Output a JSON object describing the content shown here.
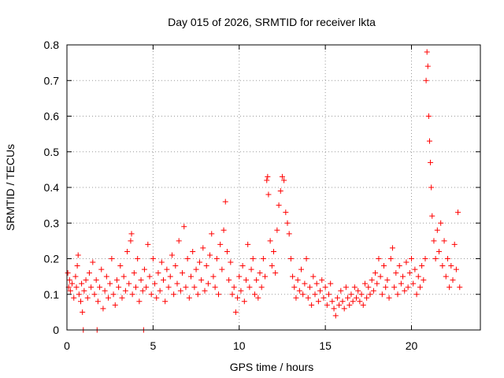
{
  "chart_data": {
    "type": "scatter",
    "title": "Day 015 of 2026, SRMTID for receiver lkta",
    "xlabel": "GPS time / hours",
    "ylabel": "SRMTID / TECUs",
    "xlim": [
      0,
      24
    ],
    "ylim": [
      0,
      0.8
    ],
    "grid": true,
    "marker": "+",
    "color": "#ff0000",
    "xticks": [
      0,
      5,
      10,
      15,
      20
    ],
    "xtick_labels": [
      "0",
      "5",
      "10",
      "15",
      "20"
    ],
    "yticks": [
      0,
      0.1,
      0.2,
      0.3,
      0.4,
      0.5,
      0.6,
      0.7,
      0.8
    ],
    "ytick_labels": [
      "0",
      "0.1",
      "0.2",
      "0.3",
      "0.4",
      "0.5",
      "0.6",
      "0.7",
      "0.8"
    ],
    "series": [
      {
        "name": "SRMTID",
        "points": [
          [
            0.05,
            0.16
          ],
          [
            0.1,
            0.12
          ],
          [
            0.15,
            0.14
          ],
          [
            0.2,
            0.11
          ],
          [
            0.3,
            0.13
          ],
          [
            0.4,
            0.09
          ],
          [
            0.5,
            0.15
          ],
          [
            0.55,
            0.12
          ],
          [
            0.6,
            0.18
          ],
          [
            0.65,
            0.21
          ],
          [
            0.7,
            0.1
          ],
          [
            0.8,
            0.08
          ],
          [
            0.85,
            0.13
          ],
          [
            0.9,
            0.05
          ],
          [
            0.95,
            0.0
          ],
          [
            1.0,
            0.11
          ],
          [
            1.1,
            0.14
          ],
          [
            1.2,
            0.09
          ],
          [
            1.3,
            0.16
          ],
          [
            1.4,
            0.12
          ],
          [
            1.5,
            0.19
          ],
          [
            1.6,
            0.1
          ],
          [
            1.7,
            0.14
          ],
          [
            1.75,
            0.0
          ],
          [
            1.8,
            0.08
          ],
          [
            1.9,
            0.12
          ],
          [
            2.0,
            0.17
          ],
          [
            2.1,
            0.06
          ],
          [
            2.2,
            0.11
          ],
          [
            2.3,
            0.15
          ],
          [
            2.4,
            0.09
          ],
          [
            2.5,
            0.13
          ],
          [
            2.6,
            0.2
          ],
          [
            2.7,
            0.1
          ],
          [
            2.8,
            0.07
          ],
          [
            2.9,
            0.14
          ],
          [
            3.0,
            0.12
          ],
          [
            3.1,
            0.18
          ],
          [
            3.2,
            0.09
          ],
          [
            3.3,
            0.15
          ],
          [
            3.4,
            0.11
          ],
          [
            3.5,
            0.22
          ],
          [
            3.6,
            0.13
          ],
          [
            3.7,
            0.25
          ],
          [
            3.75,
            0.27
          ],
          [
            3.8,
            0.1
          ],
          [
            3.9,
            0.16
          ],
          [
            4.0,
            0.12
          ],
          [
            4.1,
            0.2
          ],
          [
            4.2,
            0.08
          ],
          [
            4.3,
            0.14
          ],
          [
            4.4,
            0.11
          ],
          [
            4.45,
            0.0
          ],
          [
            4.5,
            0.17
          ],
          [
            4.6,
            0.12
          ],
          [
            4.7,
            0.24
          ],
          [
            4.8,
            0.15
          ],
          [
            4.9,
            0.1
          ],
          [
            5.0,
            0.2
          ],
          [
            5.1,
            0.13
          ],
          [
            5.2,
            0.09
          ],
          [
            5.3,
            0.16
          ],
          [
            5.4,
            0.11
          ],
          [
            5.5,
            0.19
          ],
          [
            5.6,
            0.14
          ],
          [
            5.7,
            0.08
          ],
          [
            5.8,
            0.17
          ],
          [
            5.9,
            0.12
          ],
          [
            6.0,
            0.15
          ],
          [
            6.1,
            0.21
          ],
          [
            6.2,
            0.1
          ],
          [
            6.3,
            0.18
          ],
          [
            6.4,
            0.13
          ],
          [
            6.5,
            0.25
          ],
          [
            6.6,
            0.11
          ],
          [
            6.7,
            0.16
          ],
          [
            6.8,
            0.29
          ],
          [
            6.9,
            0.12
          ],
          [
            7.0,
            0.2
          ],
          [
            7.1,
            0.09
          ],
          [
            7.2,
            0.15
          ],
          [
            7.3,
            0.22
          ],
          [
            7.4,
            0.12
          ],
          [
            7.5,
            0.17
          ],
          [
            7.6,
            0.1
          ],
          [
            7.7,
            0.19
          ],
          [
            7.8,
            0.14
          ],
          [
            7.9,
            0.23
          ],
          [
            8.0,
            0.11
          ],
          [
            8.1,
            0.18
          ],
          [
            8.2,
            0.13
          ],
          [
            8.3,
            0.21
          ],
          [
            8.4,
            0.27
          ],
          [
            8.5,
            0.15
          ],
          [
            8.6,
            0.12
          ],
          [
            8.7,
            0.2
          ],
          [
            8.8,
            0.1
          ],
          [
            8.9,
            0.24
          ],
          [
            9.0,
            0.17
          ],
          [
            9.1,
            0.28
          ],
          [
            9.2,
            0.36
          ],
          [
            9.3,
            0.22
          ],
          [
            9.4,
            0.14
          ],
          [
            9.5,
            0.19
          ],
          [
            9.6,
            0.1
          ],
          [
            9.7,
            0.12
          ],
          [
            9.8,
            0.05
          ],
          [
            9.9,
            0.09
          ],
          [
            10.0,
            0.15
          ],
          [
            10.1,
            0.11
          ],
          [
            10.2,
            0.18
          ],
          [
            10.3,
            0.08
          ],
          [
            10.4,
            0.14
          ],
          [
            10.5,
            0.24
          ],
          [
            10.6,
            0.12
          ],
          [
            10.7,
            0.17
          ],
          [
            10.8,
            0.2
          ],
          [
            10.9,
            0.1
          ],
          [
            11.0,
            0.14
          ],
          [
            11.1,
            0.09
          ],
          [
            11.2,
            0.16
          ],
          [
            11.3,
            0.12
          ],
          [
            11.4,
            0.2
          ],
          [
            11.5,
            0.15
          ],
          [
            11.6,
            0.42
          ],
          [
            11.65,
            0.43
          ],
          [
            11.7,
            0.38
          ],
          [
            11.8,
            0.25
          ],
          [
            11.9,
            0.18
          ],
          [
            12.0,
            0.22
          ],
          [
            12.1,
            0.16
          ],
          [
            12.2,
            0.28
          ],
          [
            12.3,
            0.35
          ],
          [
            12.4,
            0.39
          ],
          [
            12.5,
            0.43
          ],
          [
            12.6,
            0.42
          ],
          [
            12.7,
            0.33
          ],
          [
            12.8,
            0.3
          ],
          [
            12.9,
            0.27
          ],
          [
            13.0,
            0.2
          ],
          [
            13.1,
            0.15
          ],
          [
            13.2,
            0.12
          ],
          [
            13.3,
            0.09
          ],
          [
            13.4,
            0.14
          ],
          [
            13.5,
            0.11
          ],
          [
            13.6,
            0.17
          ],
          [
            13.7,
            0.1
          ],
          [
            13.8,
            0.13
          ],
          [
            13.9,
            0.2
          ],
          [
            14.0,
            0.09
          ],
          [
            14.1,
            0.12
          ],
          [
            14.2,
            0.07
          ],
          [
            14.3,
            0.15
          ],
          [
            14.4,
            0.1
          ],
          [
            14.5,
            0.13
          ],
          [
            14.6,
            0.08
          ],
          [
            14.7,
            0.11
          ],
          [
            14.8,
            0.14
          ],
          [
            14.9,
            0.09
          ],
          [
            15.0,
            0.12
          ],
          [
            15.1,
            0.07
          ],
          [
            15.2,
            0.1
          ],
          [
            15.3,
            0.13
          ],
          [
            15.4,
            0.08
          ],
          [
            15.5,
            0.06
          ],
          [
            15.6,
            0.04
          ],
          [
            15.7,
            0.09
          ],
          [
            15.8,
            0.07
          ],
          [
            15.9,
            0.11
          ],
          [
            16.0,
            0.08
          ],
          [
            16.1,
            0.06
          ],
          [
            16.2,
            0.12
          ],
          [
            16.3,
            0.09
          ],
          [
            16.4,
            0.07
          ],
          [
            16.5,
            0.1
          ],
          [
            16.6,
            0.08
          ],
          [
            16.7,
            0.12
          ],
          [
            16.8,
            0.09
          ],
          [
            16.9,
            0.11
          ],
          [
            17.0,
            0.08
          ],
          [
            17.1,
            0.1
          ],
          [
            17.2,
            0.07
          ],
          [
            17.3,
            0.13
          ],
          [
            17.4,
            0.09
          ],
          [
            17.5,
            0.12
          ],
          [
            17.6,
            0.1
          ],
          [
            17.7,
            0.14
          ],
          [
            17.8,
            0.11
          ],
          [
            17.9,
            0.16
          ],
          [
            18.0,
            0.13
          ],
          [
            18.1,
            0.2
          ],
          [
            18.2,
            0.15
          ],
          [
            18.3,
            0.1
          ],
          [
            18.4,
            0.18
          ],
          [
            18.5,
            0.12
          ],
          [
            18.6,
            0.14
          ],
          [
            18.7,
            0.09
          ],
          [
            18.8,
            0.2
          ],
          [
            18.9,
            0.23
          ],
          [
            19.0,
            0.12
          ],
          [
            19.1,
            0.16
          ],
          [
            19.2,
            0.1
          ],
          [
            19.3,
            0.18
          ],
          [
            19.4,
            0.13
          ],
          [
            19.5,
            0.15
          ],
          [
            19.6,
            0.11
          ],
          [
            19.7,
            0.19
          ],
          [
            19.8,
            0.12
          ],
          [
            19.9,
            0.16
          ],
          [
            20.0,
            0.2
          ],
          [
            20.1,
            0.13
          ],
          [
            20.2,
            0.17
          ],
          [
            20.3,
            0.1
          ],
          [
            20.4,
            0.15
          ],
          [
            20.5,
            0.12
          ],
          [
            20.6,
            0.18
          ],
          [
            20.7,
            0.14
          ],
          [
            20.8,
            0.2
          ],
          [
            20.85,
            0.7
          ],
          [
            20.9,
            0.78
          ],
          [
            20.95,
            0.74
          ],
          [
            21.0,
            0.6
          ],
          [
            21.05,
            0.53
          ],
          [
            21.1,
            0.47
          ],
          [
            21.15,
            0.4
          ],
          [
            21.2,
            0.32
          ],
          [
            21.3,
            0.25
          ],
          [
            21.4,
            0.2
          ],
          [
            21.5,
            0.28
          ],
          [
            21.6,
            0.22
          ],
          [
            21.7,
            0.3
          ],
          [
            21.8,
            0.18
          ],
          [
            21.9,
            0.25
          ],
          [
            22.0,
            0.15
          ],
          [
            22.1,
            0.2
          ],
          [
            22.2,
            0.12
          ],
          [
            22.3,
            0.18
          ],
          [
            22.4,
            0.14
          ],
          [
            22.5,
            0.24
          ],
          [
            22.6,
            0.17
          ],
          [
            22.7,
            0.33
          ],
          [
            22.8,
            0.12
          ]
        ]
      }
    ]
  }
}
